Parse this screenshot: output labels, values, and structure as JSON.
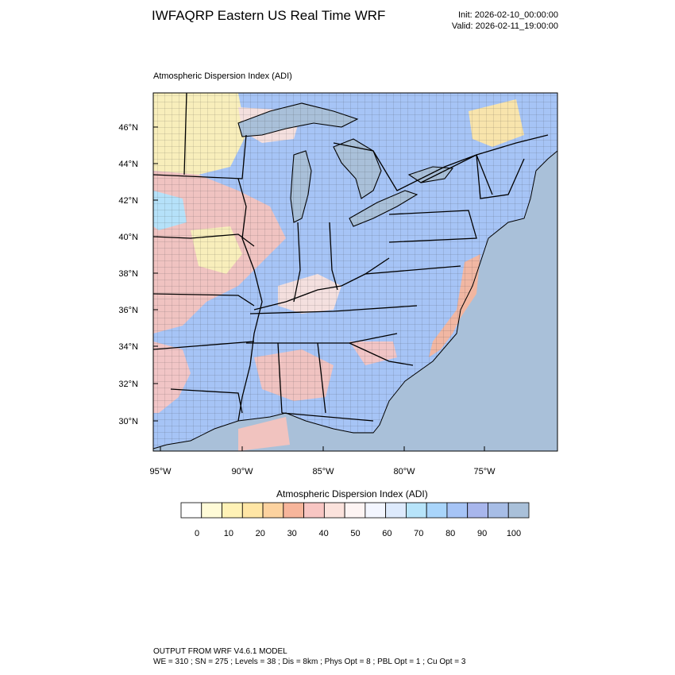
{
  "header": {
    "title": "IWFAQRP Eastern US Real Time WRF",
    "init": "Init: 2026-02-10_00:00:00",
    "valid": "Valid: 2026-02-11_19:00:00"
  },
  "map": {
    "subtitle": "Atmospheric Dispersion Index   (ADI)",
    "lat_labels": [
      "46°N",
      "44°N",
      "42°N",
      "40°N",
      "38°N",
      "36°N",
      "34°N",
      "32°N",
      "30°N"
    ],
    "lon_labels": [
      "95°W",
      "90°W",
      "85°W",
      "80°W",
      "75°W"
    ]
  },
  "colorbar": {
    "title": "Atmospheric Dispersion Index  (ADI)",
    "tick_labels": [
      "0",
      "10",
      "20",
      "30",
      "40",
      "50",
      "60",
      "70",
      "80",
      "90",
      "100"
    ],
    "colors": [
      "#ffffff",
      "#fffbd7",
      "#fff2b6",
      "#ffe6a5",
      "#fcd29f",
      "#f7b59b",
      "#f8c6c3",
      "#fbe2dc",
      "#fdf4f3",
      "#f3f6ff",
      "#ddeafc",
      "#b7e4fa",
      "#a9d5fb",
      "#a6c4f6",
      "#a8b6ec",
      "#a7bde6",
      "#a9c0d9"
    ]
  },
  "footer": {
    "line1": "OUTPUT FROM WRF V4.6.1 MODEL",
    "line2": "WE = 310 ; SN = 275 ; Levels = 38 ; Dis = 8km ; Phys Opt = 8 ; PBL Opt = 1 ; Cu Opt = 3"
  },
  "style": {
    "ocean": "#a9c0d9",
    "land_blue": "#a6c4f6",
    "land_pink": "#f7c3bd",
    "land_yellow": "#fff2b6",
    "border": "#000000"
  }
}
